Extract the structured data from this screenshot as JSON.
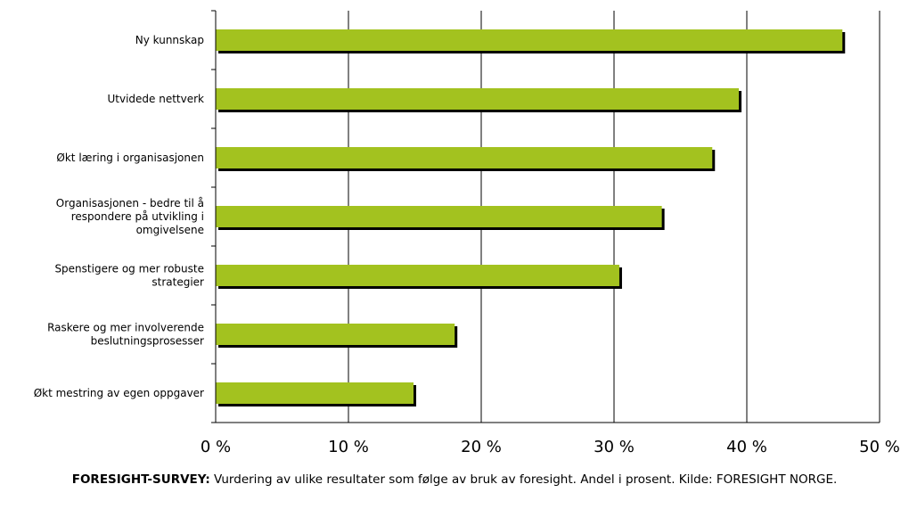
{
  "chart_data": {
    "type": "bar",
    "orientation": "horizontal",
    "categories": [
      [
        "Ny kunnskap"
      ],
      [
        "Utvidede nettverk"
      ],
      [
        "Økt læring i organisasjonen"
      ],
      [
        "Organisasjonen - bedre til å",
        "respondere på utvikling i",
        "omgivelsene"
      ],
      [
        "Spenstigere og mer robuste",
        "strategier"
      ],
      [
        "Raskere og mer involverende",
        "beslutningsprosesser"
      ],
      [
        "Økt mestring av egen oppgaver"
      ]
    ],
    "values": [
      47.2,
      39.4,
      37.4,
      33.6,
      30.4,
      18.0,
      14.9
    ],
    "xlim": [
      0,
      50
    ],
    "xticks": [
      0,
      10,
      20,
      30,
      40,
      50
    ],
    "tick_labels": [
      "0 %",
      "10 %",
      "20 %",
      "30 %",
      "40 %",
      "50 %"
    ],
    "grid": "vertical",
    "bar_color": "#a3c21f",
    "shadow_color": "#000000"
  },
  "caption": {
    "bold": "FORESIGHT-SURVEY:",
    "text": " Vurdering av ulike resultater som følge av bruk av foresight. Andel i prosent. Kilde: FORESIGHT NORGE."
  }
}
